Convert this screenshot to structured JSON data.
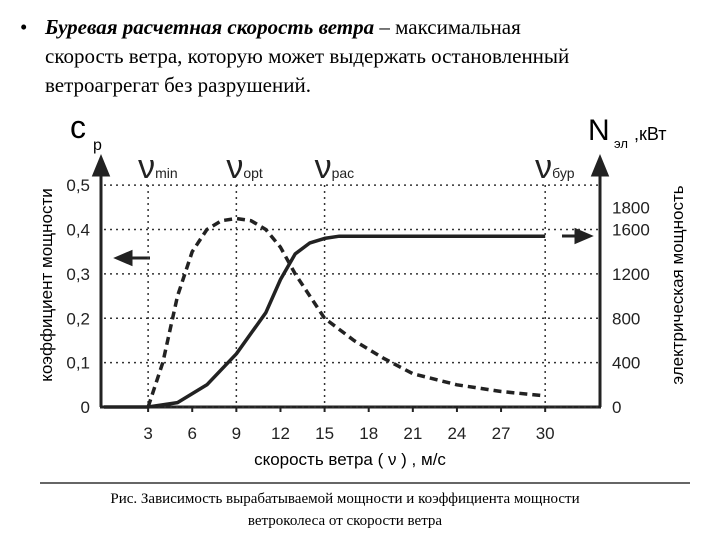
{
  "bullet": {
    "marker": "•",
    "emphasis": "Буревая расчетная скорость ветра",
    "lines": [
      " – максимальная",
      "скорость ветра, которую может выдержать остановленный",
      "ветроагрегат без разрушений."
    ]
  },
  "chart_data": {
    "type": "line",
    "xlabel": "скорость ветра ( ν ) , м/с",
    "ylabel": "коэффициент мощности",
    "y2label": "электрическая мощность",
    "y_symbol": "c",
    "y_symbol_sub": "p",
    "y2_symbol": "N",
    "y2_symbol_sub": "эл",
    "y2_unit": ",кВт",
    "xlim": [
      0,
      34
    ],
    "xticks": [
      3,
      6,
      9,
      12,
      15,
      18,
      21,
      24,
      27,
      30
    ],
    "ylim": [
      0,
      0.55
    ],
    "yticks": [
      0,
      {
        "value": 0.1,
        "label": "0,1"
      },
      {
        "value": 0.2,
        "label": "0,2"
      },
      {
        "value": 0.3,
        "label": "0,3"
      },
      {
        "value": 0.4,
        "label": "0,4"
      },
      {
        "value": 0.5,
        "label": "0,5"
      }
    ],
    "y2lim": [
      0,
      2200
    ],
    "y2ticks": [
      0,
      400,
      800,
      1200,
      1600,
      1800
    ],
    "grid": true,
    "markers": [
      {
        "x": 3,
        "symbol": "ν",
        "sub": "min"
      },
      {
        "x": 9,
        "symbol": "ν",
        "sub": "opt"
      },
      {
        "x": 15,
        "symbol": "ν",
        "sub": "рас"
      },
      {
        "x": 30,
        "symbol": "ν",
        "sub": "бур"
      }
    ],
    "series": [
      {
        "color": "#222222",
        "dash": true,
        "axis": "y",
        "x": [
          3,
          4,
          5,
          6,
          7,
          8,
          9,
          10,
          11,
          12,
          13,
          14,
          15,
          17,
          19,
          21,
          24,
          27,
          30
        ],
        "values": [
          0,
          0.1,
          0.25,
          0.35,
          0.4,
          0.42,
          0.425,
          0.42,
          0.4,
          0.36,
          0.3,
          0.25,
          0.2,
          0.15,
          0.11,
          0.075,
          0.05,
          0.035,
          0.025
        ]
      },
      {
        "color": "#222222",
        "dash": false,
        "axis": "y2",
        "x": [
          0,
          3,
          5,
          7,
          9,
          11,
          12,
          13,
          14,
          15,
          16,
          30
        ],
        "values": [
          0,
          0,
          40,
          200,
          480,
          850,
          1150,
          1380,
          1480,
          1520,
          1540,
          1540
        ]
      }
    ]
  },
  "caption": [
    "Рис. Зависимость вырабатываемой мощности и коэффициента мощности",
    "ветроколеса  от скорости ветра"
  ]
}
